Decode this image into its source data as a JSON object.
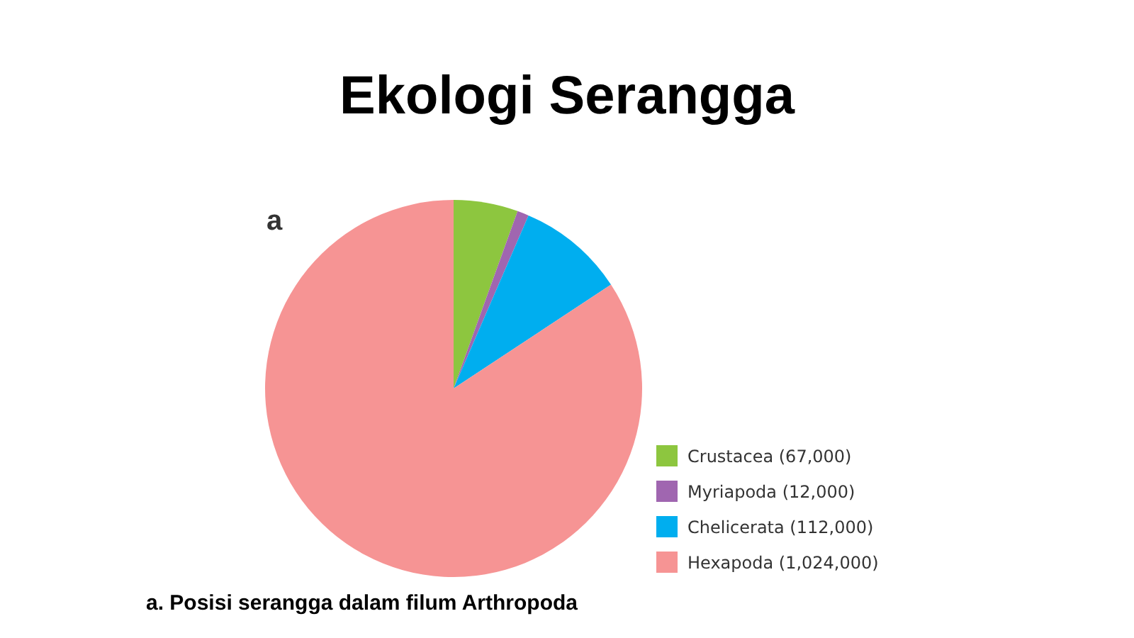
{
  "chart_data": {
    "type": "pie",
    "title": "Ekologi Serangga",
    "categories": [
      "Crustacea (67,000)",
      "Myriapoda (12,000)",
      "Chelicerata (112,000)",
      "Hexapoda (1,024,000)"
    ],
    "values": [
      67000,
      12000,
      112000,
      1024000
    ],
    "colors": [
      "#8dc63f",
      "#a066b0",
      "#00aeef",
      "#f69494"
    ],
    "legend": "bottom right",
    "annotations": [
      "a",
      "a. Posisi serangga dalam filum Arthropoda"
    ]
  }
}
